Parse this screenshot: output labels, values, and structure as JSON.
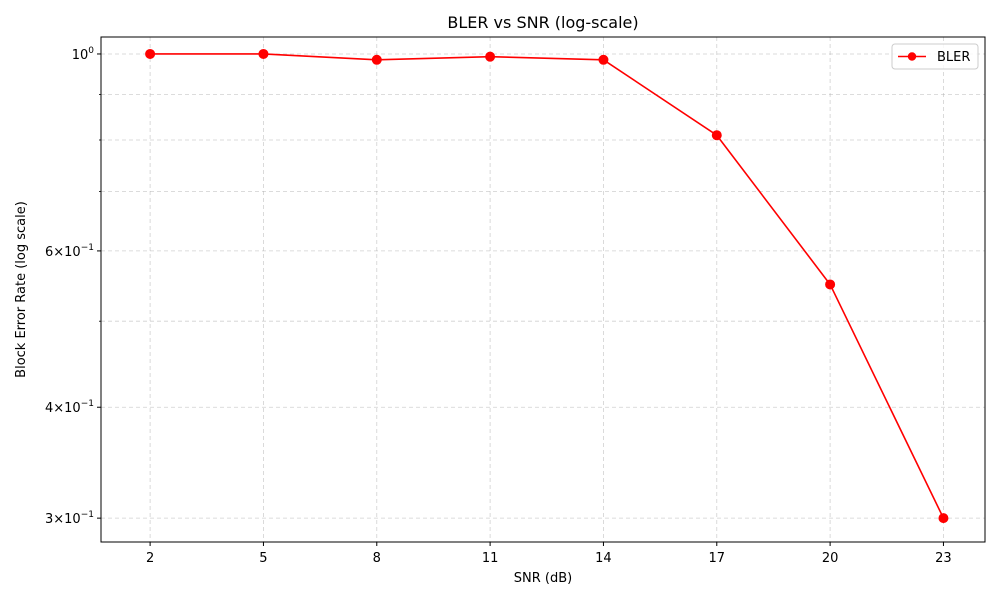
{
  "chart_data": {
    "type": "line",
    "title": "BLER vs SNR (log-scale)",
    "xlabel": "SNR (dB)",
    "ylabel": "Block Error Rate (log scale)",
    "yscale": "log",
    "x": [
      2,
      5,
      8,
      11,
      14,
      17,
      20,
      23
    ],
    "xticks": [
      "2",
      "5",
      "8",
      "11",
      "14",
      "17",
      "20",
      "23"
    ],
    "xlim": [
      0.7,
      24.1
    ],
    "ylim": [
      0.282,
      1.045
    ],
    "series": [
      {
        "name": "BLER",
        "values": [
          1.0,
          1.0,
          0.985,
          0.993,
          0.985,
          0.81,
          0.55,
          0.3
        ],
        "color": "#ff0000",
        "marker": "circle"
      }
    ],
    "yticks_major": [
      {
        "value": 1.0,
        "base": "10",
        "exp": "0",
        "mant": ""
      },
      {
        "value": 0.6,
        "base": "10",
        "exp": "−1",
        "mant": "6"
      },
      {
        "value": 0.4,
        "base": "10",
        "exp": "−1",
        "mant": "4"
      },
      {
        "value": 0.3,
        "base": "10",
        "exp": "−1",
        "mant": "3"
      }
    ],
    "yticks_minor": [
      0.5,
      0.7,
      0.8,
      0.9
    ],
    "grid": true,
    "legend": "top-right"
  }
}
